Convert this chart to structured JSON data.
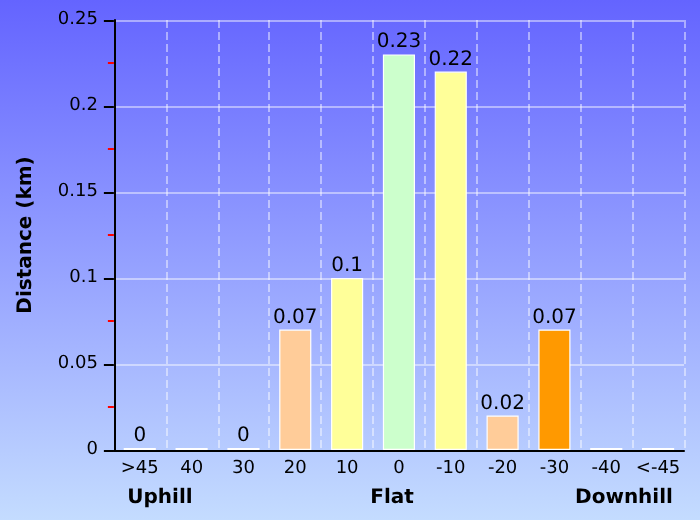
{
  "chart_data": {
    "type": "bar",
    "ylabel": "Distance (km)",
    "categories": [
      ">45",
      "40",
      "30",
      "20",
      "10",
      "0",
      "-10",
      "-20",
      "-30",
      "-40",
      "<-45"
    ],
    "values": [
      0,
      0,
      0,
      0.07,
      0.1,
      0.23,
      0.22,
      0.02,
      0.07,
      0,
      0
    ],
    "value_labels": [
      "0",
      null,
      "0",
      "0.07",
      "0.1",
      "0.23",
      "0.22",
      "0.02",
      "0.07",
      null,
      null
    ],
    "colors": [
      "#ff0000",
      "#ff6600",
      "#ff9900",
      "#ffcc99",
      "#ffff99",
      "#ccffcc",
      "#ffff99",
      "#ffcc99",
      "#ff9900",
      "#ff6600",
      "#ff0000"
    ],
    "ylim": [
      0,
      0.25
    ],
    "yticks": [
      0,
      0.05,
      0.1,
      0.15,
      0.2,
      0.25
    ],
    "grid": true,
    "annotations": [
      "Uphill",
      "Flat",
      "Downhill"
    ]
  }
}
